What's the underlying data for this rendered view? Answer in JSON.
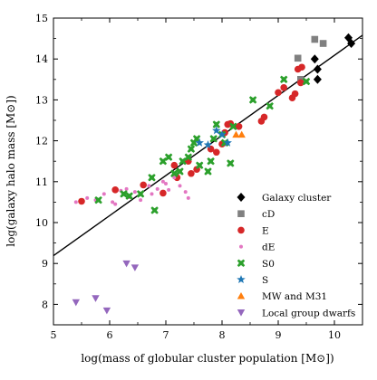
{
  "chart_data": {
    "type": "scatter",
    "title": "",
    "xlabel": "log(mass of globular cluster population [M⊙])",
    "ylabel": "log(galaxy halo mass [M⊙])",
    "xlim": [
      5.0,
      10.5
    ],
    "ylim": [
      7.5,
      15.0
    ],
    "x_ticks": [
      5,
      6,
      7,
      8,
      9,
      10
    ],
    "y_ticks": [
      8,
      9,
      10,
      11,
      12,
      13,
      14,
      15
    ],
    "grid": false,
    "legend_position": "lower-right",
    "fit_line": {
      "slope": 0.98,
      "intercept": 4.29
    },
    "series": [
      {
        "name": "Galaxy cluster",
        "marker": "diamond",
        "color": "#000000",
        "points": [
          [
            10.25,
            14.52
          ],
          [
            10.3,
            14.38
          ],
          [
            9.65,
            14.0
          ],
          [
            9.7,
            13.75
          ],
          [
            9.7,
            13.5
          ]
        ]
      },
      {
        "name": "cD",
        "marker": "square",
        "color": "#808080",
        "points": [
          [
            9.65,
            14.48
          ],
          [
            9.8,
            14.38
          ],
          [
            9.35,
            14.02
          ],
          [
            9.4,
            13.5
          ]
        ]
      },
      {
        "name": "E",
        "marker": "circle",
        "color": "#d62728",
        "points": [
          [
            5.5,
            10.52
          ],
          [
            6.1,
            10.8
          ],
          [
            6.6,
            10.92
          ],
          [
            6.95,
            10.72
          ],
          [
            7.15,
            11.4
          ],
          [
            7.2,
            11.1
          ],
          [
            7.4,
            11.5
          ],
          [
            7.45,
            11.2
          ],
          [
            7.55,
            11.3
          ],
          [
            7.8,
            11.8
          ],
          [
            7.9,
            11.72
          ],
          [
            8.0,
            11.92
          ],
          [
            8.05,
            12.2
          ],
          [
            8.1,
            12.4
          ],
          [
            8.15,
            12.42
          ],
          [
            8.3,
            12.35
          ],
          [
            8.7,
            12.48
          ],
          [
            8.75,
            12.58
          ],
          [
            9.0,
            13.18
          ],
          [
            9.1,
            13.3
          ],
          [
            9.25,
            13.05
          ],
          [
            9.3,
            13.15
          ],
          [
            9.4,
            13.42
          ],
          [
            9.42,
            13.8
          ],
          [
            9.35,
            13.75
          ]
        ]
      },
      {
        "name": "dE",
        "marker": "small-circle",
        "color": "#e377c2",
        "points": [
          [
            5.4,
            10.5
          ],
          [
            5.6,
            10.6
          ],
          [
            5.75,
            10.55
          ],
          [
            5.9,
            10.7
          ],
          [
            6.05,
            10.5
          ],
          [
            6.1,
            10.45
          ],
          [
            6.2,
            10.78
          ],
          [
            6.3,
            10.82
          ],
          [
            6.35,
            10.62
          ],
          [
            6.45,
            10.75
          ],
          [
            6.55,
            10.55
          ],
          [
            6.7,
            10.9
          ],
          [
            6.75,
            10.7
          ],
          [
            6.85,
            10.82
          ],
          [
            6.95,
            11.0
          ],
          [
            7.0,
            10.95
          ],
          [
            7.05,
            10.8
          ],
          [
            7.15,
            11.1
          ],
          [
            7.25,
            10.9
          ],
          [
            7.35,
            10.75
          ],
          [
            7.4,
            10.6
          ]
        ]
      },
      {
        "name": "S0",
        "marker": "cross",
        "color": "#2ca02c",
        "points": [
          [
            5.8,
            10.55
          ],
          [
            6.25,
            10.7
          ],
          [
            6.35,
            10.65
          ],
          [
            6.55,
            10.7
          ],
          [
            6.75,
            11.1
          ],
          [
            6.8,
            10.3
          ],
          [
            6.95,
            11.5
          ],
          [
            7.05,
            11.6
          ],
          [
            7.15,
            11.2
          ],
          [
            7.25,
            11.25
          ],
          [
            7.3,
            11.5
          ],
          [
            7.4,
            11.6
          ],
          [
            7.45,
            11.8
          ],
          [
            7.5,
            11.95
          ],
          [
            7.55,
            12.05
          ],
          [
            7.6,
            11.4
          ],
          [
            7.75,
            11.25
          ],
          [
            7.8,
            11.5
          ],
          [
            7.85,
            12.05
          ],
          [
            7.9,
            12.4
          ],
          [
            8.0,
            12.15
          ],
          [
            8.05,
            11.95
          ],
          [
            8.15,
            11.45
          ],
          [
            8.2,
            12.35
          ],
          [
            8.55,
            13.0
          ],
          [
            8.85,
            12.85
          ],
          [
            9.1,
            13.5
          ],
          [
            9.5,
            13.45
          ]
        ]
      },
      {
        "name": "S",
        "marker": "star",
        "color": "#1f77b4",
        "points": [
          [
            7.6,
            11.95
          ],
          [
            7.75,
            11.9
          ],
          [
            7.9,
            12.25
          ],
          [
            8.0,
            12.15
          ],
          [
            8.1,
            11.95
          ]
        ]
      },
      {
        "name": "MW and M31",
        "marker": "triangle-up",
        "color": "#ff7f0e",
        "points": [
          [
            8.25,
            12.15
          ],
          [
            8.35,
            12.15
          ]
        ]
      },
      {
        "name": "Local group dwarfs",
        "marker": "triangle-down",
        "color": "#9467bd",
        "points": [
          [
            5.4,
            8.05
          ],
          [
            5.75,
            8.15
          ],
          [
            5.95,
            7.85
          ],
          [
            6.3,
            9.0
          ],
          [
            6.45,
            8.9
          ]
        ]
      }
    ]
  }
}
